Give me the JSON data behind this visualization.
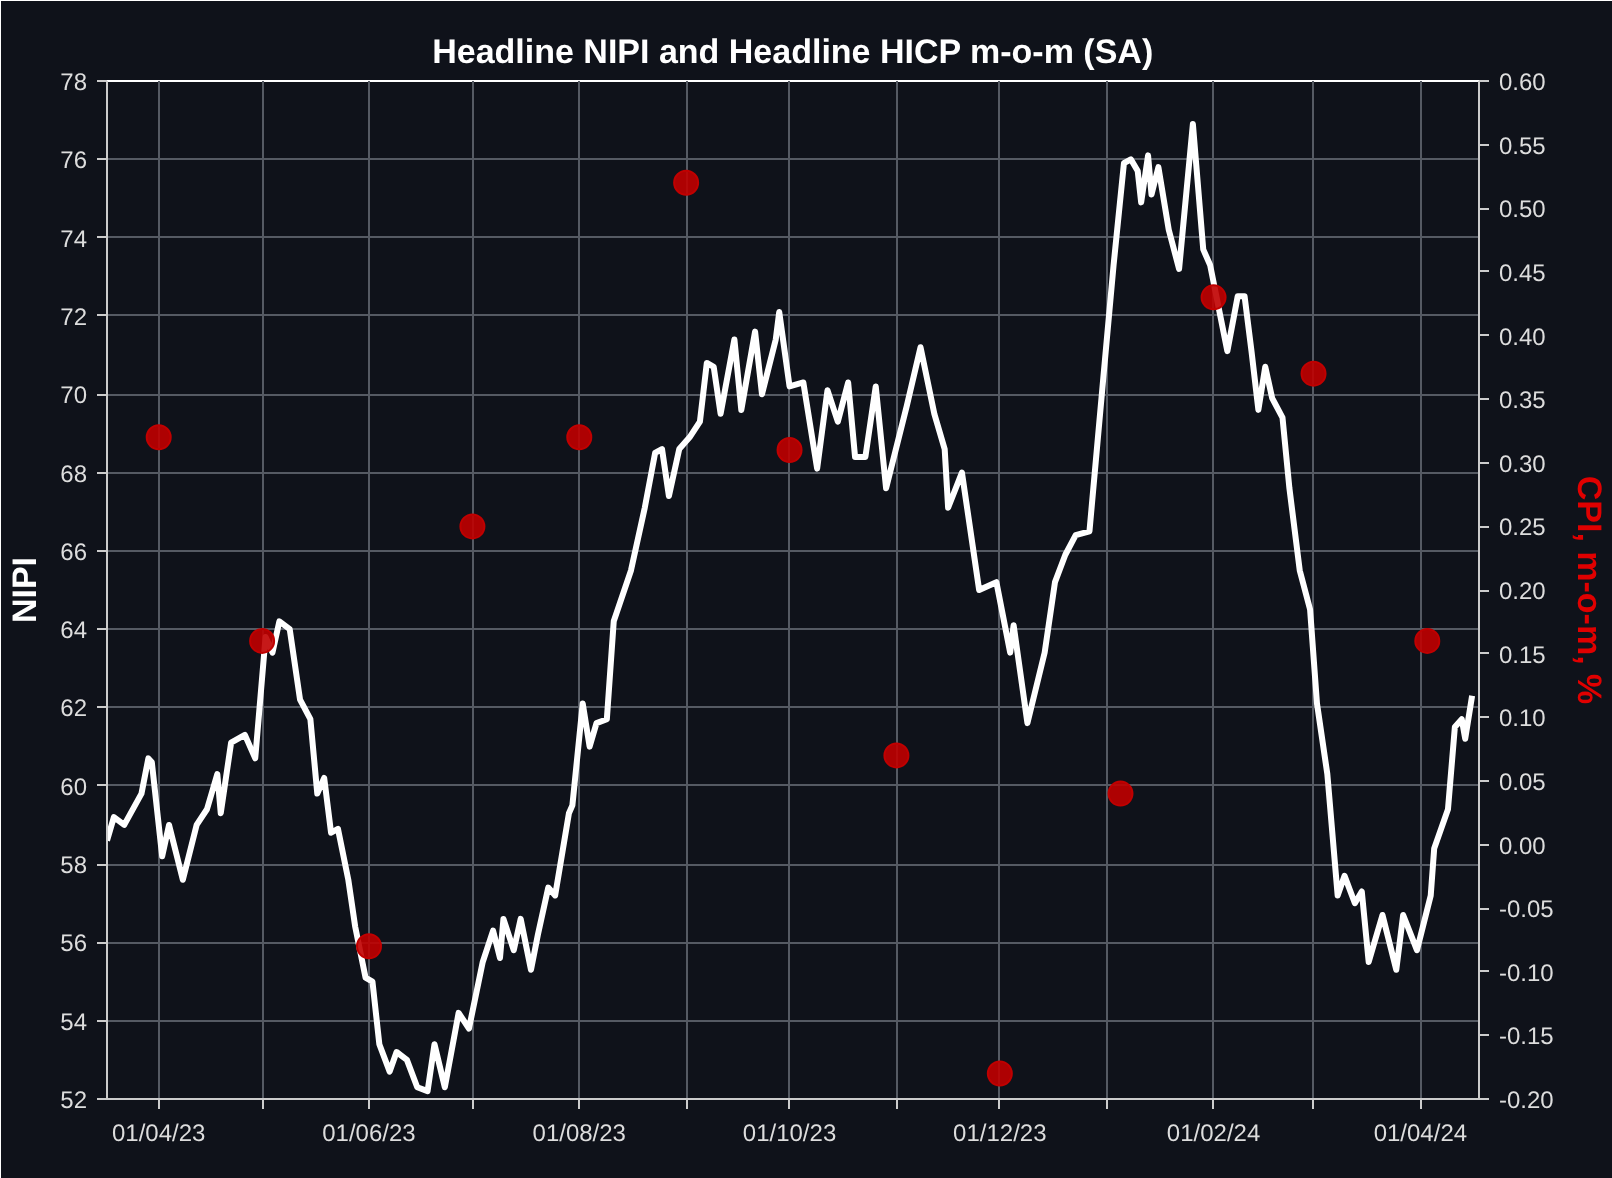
{
  "chart_data": {
    "type": "line",
    "title": "Headline NIPI and Headline HICP m-o-m (SA)",
    "ylabel": "NIPI",
    "y2label": "CPI, m-o-m, %",
    "grid": true,
    "xlim": [
      "2023-03-17",
      "2024-04-18"
    ],
    "xticks": [
      {
        "value": "2023-04-01",
        "label": "01/04/23"
      },
      {
        "value": "2023-05-01",
        "label": null
      },
      {
        "value": "2023-06-01",
        "label": "01/06/23"
      },
      {
        "value": "2023-07-01",
        "label": null
      },
      {
        "value": "2023-08-01",
        "label": "01/08/23"
      },
      {
        "value": "2023-09-01",
        "label": null
      },
      {
        "value": "2023-10-01",
        "label": "01/10/23"
      },
      {
        "value": "2023-11-01",
        "label": null
      },
      {
        "value": "2023-12-01",
        "label": "01/12/23"
      },
      {
        "value": "2024-01-01",
        "label": null
      },
      {
        "value": "2024-02-01",
        "label": "01/02/24"
      },
      {
        "value": "2024-03-01",
        "label": null
      },
      {
        "value": "2024-04-01",
        "label": "01/04/24"
      }
    ],
    "ylim": [
      52,
      78
    ],
    "yticks": [
      52,
      54,
      56,
      58,
      60,
      62,
      64,
      66,
      68,
      70,
      72,
      74,
      76,
      78
    ],
    "y2lim": [
      -0.2,
      0.6
    ],
    "y2ticks": [
      {
        "value": -0.2,
        "label": "-0.20"
      },
      -0.15,
      {
        "value": -0.1,
        "label": "-0.10"
      },
      -0.05,
      {
        "value": 0,
        "label": "0.00"
      },
      0.05,
      {
        "value": 0.1,
        "label": "0.10"
      },
      0.15,
      {
        "value": 0.2,
        "label": "0.20"
      },
      0.25,
      {
        "value": 0.3,
        "label": "0.30"
      },
      0.35,
      {
        "value": 0.4,
        "label": "0.40"
      },
      0.45,
      {
        "value": 0.5,
        "label": "0.50"
      },
      0.55,
      {
        "value": 0.6,
        "label": "0.60"
      }
    ],
    "series": [
      {
        "color": "#ffffff",
        "marker": "none",
        "line_style": "solid",
        "x": [
          "2023-03-17",
          "2023-03-19",
          "2023-03-22",
          "2023-03-27",
          "2023-03-29",
          "2023-03-30",
          "2023-04-02",
          "2023-04-04",
          "2023-04-08",
          "2023-04-12",
          "2023-04-15",
          "2023-04-18",
          "2023-04-19",
          "2023-04-22",
          "2023-04-26",
          "2023-04-29",
          "2023-05-02",
          "2023-05-04",
          "2023-05-06",
          "2023-05-09",
          "2023-05-12",
          "2023-05-15",
          "2023-05-17",
          "2023-05-19",
          "2023-05-21",
          "2023-05-23",
          "2023-05-26",
          "2023-05-28",
          "2023-05-31",
          "2023-06-02",
          "2023-06-04",
          "2023-06-07",
          "2023-06-09",
          "2023-06-12",
          "2023-06-15",
          "2023-06-18",
          "2023-06-20",
          "2023-06-23",
          "2023-06-27",
          "2023-06-30",
          "2023-07-04",
          "2023-07-07",
          "2023-07-09",
          "2023-07-10",
          "2023-07-13",
          "2023-07-15",
          "2023-07-18",
          "2023-07-20",
          "2023-07-23",
          "2023-07-25",
          "2023-07-29",
          "2023-07-30",
          "2023-08-02",
          "2023-08-04",
          "2023-08-06",
          "2023-08-09",
          "2023-08-11",
          "2023-08-16",
          "2023-08-20",
          "2023-08-23",
          "2023-08-25",
          "2023-08-27",
          "2023-08-30",
          "2023-09-02",
          "2023-09-05",
          "2023-09-07",
          "2023-09-09",
          "2023-09-11",
          "2023-09-15",
          "2023-09-17",
          "2023-09-21",
          "2023-09-23",
          "2023-09-27",
          "2023-09-28",
          "2023-10-01",
          "2023-10-05",
          "2023-10-09",
          "2023-10-12",
          "2023-10-15",
          "2023-10-18",
          "2023-10-20",
          "2023-10-23",
          "2023-10-26",
          "2023-10-29",
          "2023-11-04",
          "2023-11-08",
          "2023-11-12",
          "2023-11-15",
          "2023-11-16",
          "2023-11-20",
          "2023-11-25",
          "2023-11-30",
          "2023-12-04",
          "2023-12-05",
          "2023-12-09",
          "2023-12-14",
          "2023-12-17",
          "2023-12-20",
          "2023-12-23",
          "2023-12-27",
          "2023-12-31",
          "2024-01-03",
          "2024-01-06",
          "2024-01-08",
          "2024-01-10",
          "2024-01-11",
          "2024-01-13",
          "2024-01-14",
          "2024-01-16",
          "2024-01-19",
          "2024-01-22",
          "2024-01-26",
          "2024-01-29",
          "2024-01-31",
          "2024-02-05",
          "2024-02-08",
          "2024-02-10",
          "2024-02-12",
          "2024-02-14",
          "2024-02-16",
          "2024-02-18",
          "2024-02-21",
          "2024-02-23",
          "2024-02-26",
          "2024-02-29",
          "2024-03-02",
          "2024-03-05",
          "2024-03-08",
          "2024-03-10",
          "2024-03-13",
          "2024-03-15",
          "2024-03-17",
          "2024-03-21",
          "2024-03-25",
          "2024-03-27",
          "2024-03-31",
          "2024-04-04",
          "2024-04-05",
          "2024-04-09",
          "2024-04-11",
          "2024-04-13",
          "2024-04-14",
          "2024-04-16"
        ],
        "values": [
          58.6,
          59.2,
          59.0,
          59.8,
          60.7,
          60.6,
          58.2,
          59.0,
          57.6,
          59.0,
          59.4,
          60.3,
          59.3,
          61.1,
          61.3,
          60.7,
          63.8,
          63.4,
          64.2,
          64.0,
          62.2,
          61.7,
          59.8,
          60.2,
          58.8,
          58.9,
          57.6,
          56.4,
          55.1,
          55.0,
          53.4,
          52.7,
          53.2,
          53.0,
          52.3,
          52.2,
          53.4,
          52.3,
          54.2,
          53.8,
          55.5,
          56.3,
          55.6,
          56.6,
          55.8,
          56.6,
          55.3,
          56.2,
          57.4,
          57.2,
          59.3,
          59.5,
          62.1,
          61.0,
          61.6,
          61.7,
          64.2,
          65.5,
          67.1,
          68.5,
          68.6,
          67.4,
          68.6,
          68.9,
          69.3,
          70.8,
          70.7,
          69.5,
          71.4,
          69.6,
          71.6,
          70.0,
          71.4,
          72.1,
          70.2,
          70.3,
          68.1,
          70.1,
          69.3,
          70.3,
          68.4,
          68.4,
          70.2,
          67.6,
          69.7,
          71.2,
          69.5,
          68.6,
          67.1,
          68.0,
          65.0,
          65.2,
          63.4,
          64.1,
          61.6,
          63.4,
          65.2,
          65.9,
          66.4,
          66.5,
          70.4,
          73.3,
          75.9,
          76.0,
          75.7,
          74.9,
          76.1,
          75.1,
          75.8,
          74.2,
          73.2,
          76.9,
          73.7,
          73.3,
          71.1,
          72.5,
          72.5,
          71.1,
          69.6,
          70.7,
          69.9,
          69.4,
          67.6,
          65.5,
          64.5,
          62.1,
          60.3,
          57.2,
          57.7,
          57.0,
          57.3,
          55.5,
          56.7,
          55.3,
          56.7,
          55.8,
          57.2,
          58.4,
          59.4,
          61.5,
          61.7,
          61.2,
          62.3
        ]
      },
      {
        "type": "scatter",
        "axis": "y2",
        "color": "#c00000",
        "marker": "circle",
        "x": [
          "2023-04-01",
          "2023-05-01",
          "2023-06-01",
          "2023-07-01",
          "2023-08-01",
          "2023-09-01",
          "2023-10-01",
          "2023-11-01",
          "2023-12-01",
          "2024-01-05",
          "2024-02-01",
          "2024-03-01",
          "2024-04-03"
        ],
        "values": [
          0.32,
          0.16,
          -0.08,
          0.25,
          0.32,
          0.52,
          0.31,
          0.07,
          -0.18,
          0.04,
          0.43,
          0.37,
          0.16
        ]
      }
    ]
  }
}
